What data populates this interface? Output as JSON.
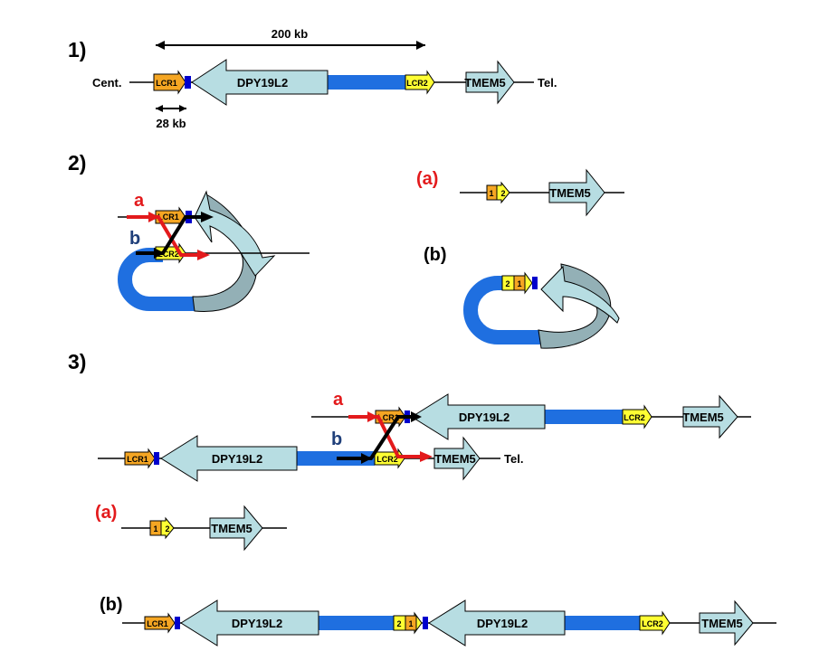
{
  "panels": {
    "p1": "1)",
    "p2": "2)",
    "p3": "3)"
  },
  "scale": {
    "kb200": "200 kb",
    "kb28": "28 kb"
  },
  "ends": {
    "cent": "Cent.",
    "tel": "Tel."
  },
  "genes": {
    "dpy": "DPY19L2",
    "tmem": "TMEM5"
  },
  "lcr": {
    "lcr1": "LCR1",
    "lcr2": "LCR2",
    "one": "1",
    "two": "2"
  },
  "labels": {
    "a": "a",
    "b": "b",
    "sub_a": "(a)",
    "sub_b": "(b)"
  },
  "colors": {
    "gene_fill": "#b7dde2",
    "gene_dark": "#93b0b6",
    "lcr1_fill": "#f5a623",
    "lcr2_fill": "#ffff33",
    "junction": "#0000cc",
    "blue_region": "#1f6fe0",
    "red_arrow": "#e31a1c",
    "black_arrow": "#000000",
    "blue_label": "#1f3f7a"
  }
}
